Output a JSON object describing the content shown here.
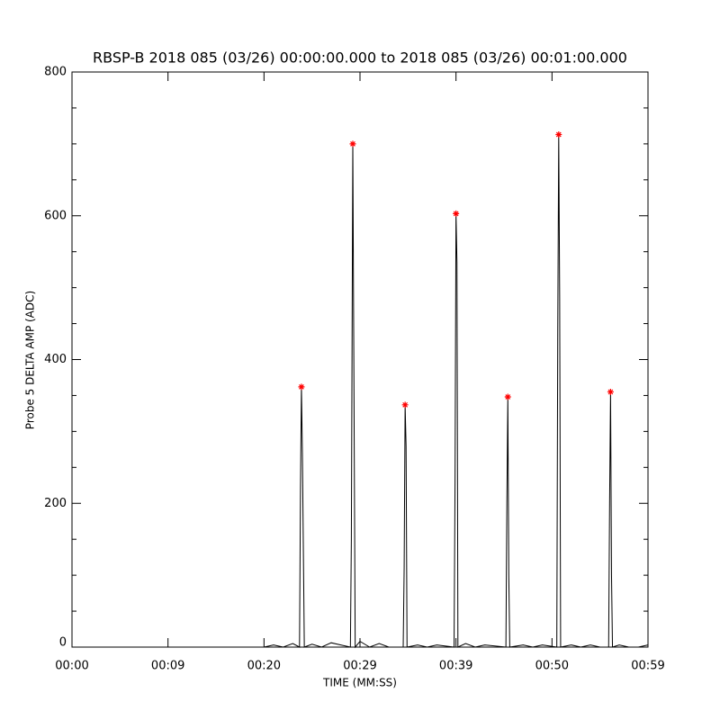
{
  "chart_data": {
    "type": "line",
    "title": "RBSP-B 2018 085 (03/26) 00:00:00.000 to 2018 085 (03/26) 00:01:00.000",
    "x_label": "TIME (MM:SS)",
    "y_label": "Probe 5 DELTA AMP (ADC)",
    "xlim": [
      0,
      60
    ],
    "ylim": [
      0,
      800
    ],
    "xticks": [
      {
        "value": 0,
        "label": "00:00"
      },
      {
        "value": 10,
        "label": "00:09"
      },
      {
        "value": 20,
        "label": "00:20"
      },
      {
        "value": 30,
        "label": "00:29"
      },
      {
        "value": 40,
        "label": "00:39"
      },
      {
        "value": 50,
        "label": "00:50"
      },
      {
        "value": 60,
        "label": "00:59"
      }
    ],
    "yticks": [
      0,
      200,
      400,
      600,
      800
    ],
    "yminor_ticks": [
      50,
      100,
      150,
      250,
      300,
      350,
      450,
      500,
      550,
      650,
      700,
      750
    ],
    "series": [
      {
        "color": "#000000",
        "x": [
          0,
          20,
          21,
          22,
          23,
          23.7,
          23.8,
          23.9,
          24.0,
          24.2,
          25,
          26,
          27,
          28,
          29.0,
          29.1,
          29.25,
          29.35,
          29.5,
          30,
          31,
          32,
          33,
          34.5,
          34.6,
          34.7,
          34.8,
          34.9,
          36,
          37,
          38,
          39.8,
          39.9,
          40.0,
          40.1,
          40.2,
          41,
          42,
          43,
          45.2,
          45.3,
          45.4,
          45.5,
          45.6,
          47,
          48,
          49,
          50.5,
          50.6,
          50.7,
          50.8,
          50.9,
          52,
          53,
          54,
          55,
          55.9,
          56.0,
          56.1,
          56.2,
          56.3,
          57,
          58,
          59,
          60
        ],
        "values": [
          0,
          0,
          3,
          0,
          5,
          0,
          220,
          362,
          270,
          0,
          4,
          0,
          6,
          3,
          0,
          150,
          700,
          420,
          0,
          8,
          0,
          5,
          0,
          0,
          110,
          337,
          280,
          0,
          3,
          0,
          3,
          0,
          230,
          603,
          535,
          0,
          5,
          0,
          3,
          0,
          200,
          348,
          100,
          0,
          3,
          0,
          3,
          0,
          440,
          713,
          485,
          0,
          3,
          0,
          3,
          0,
          0,
          200,
          355,
          100,
          0,
          3,
          0,
          0,
          3
        ]
      },
      {
        "type": "scatter",
        "color": "#ff0000",
        "x": [
          23.9,
          29.25,
          34.7,
          40.0,
          45.4,
          50.7,
          56.1
        ],
        "values": [
          362,
          700,
          337,
          603,
          348,
          713,
          355
        ]
      }
    ]
  }
}
